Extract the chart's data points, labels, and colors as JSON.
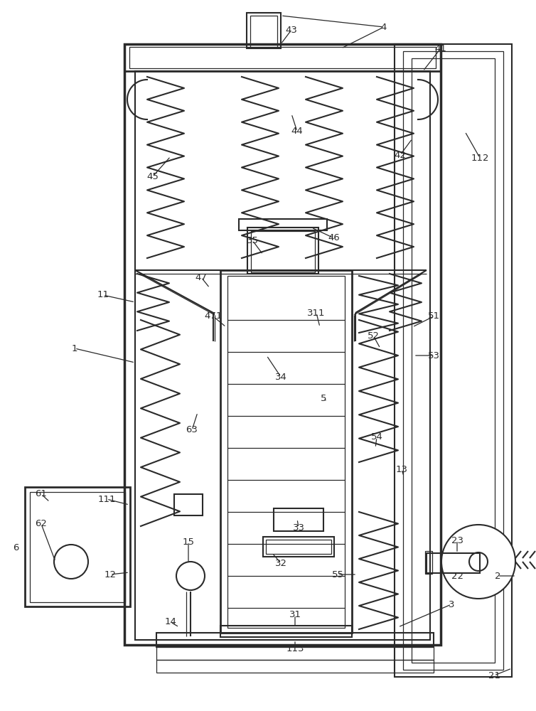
{
  "bg_color": "#ffffff",
  "lc": "#2a2a2a",
  "lw": 1.5,
  "tlw": 0.9
}
